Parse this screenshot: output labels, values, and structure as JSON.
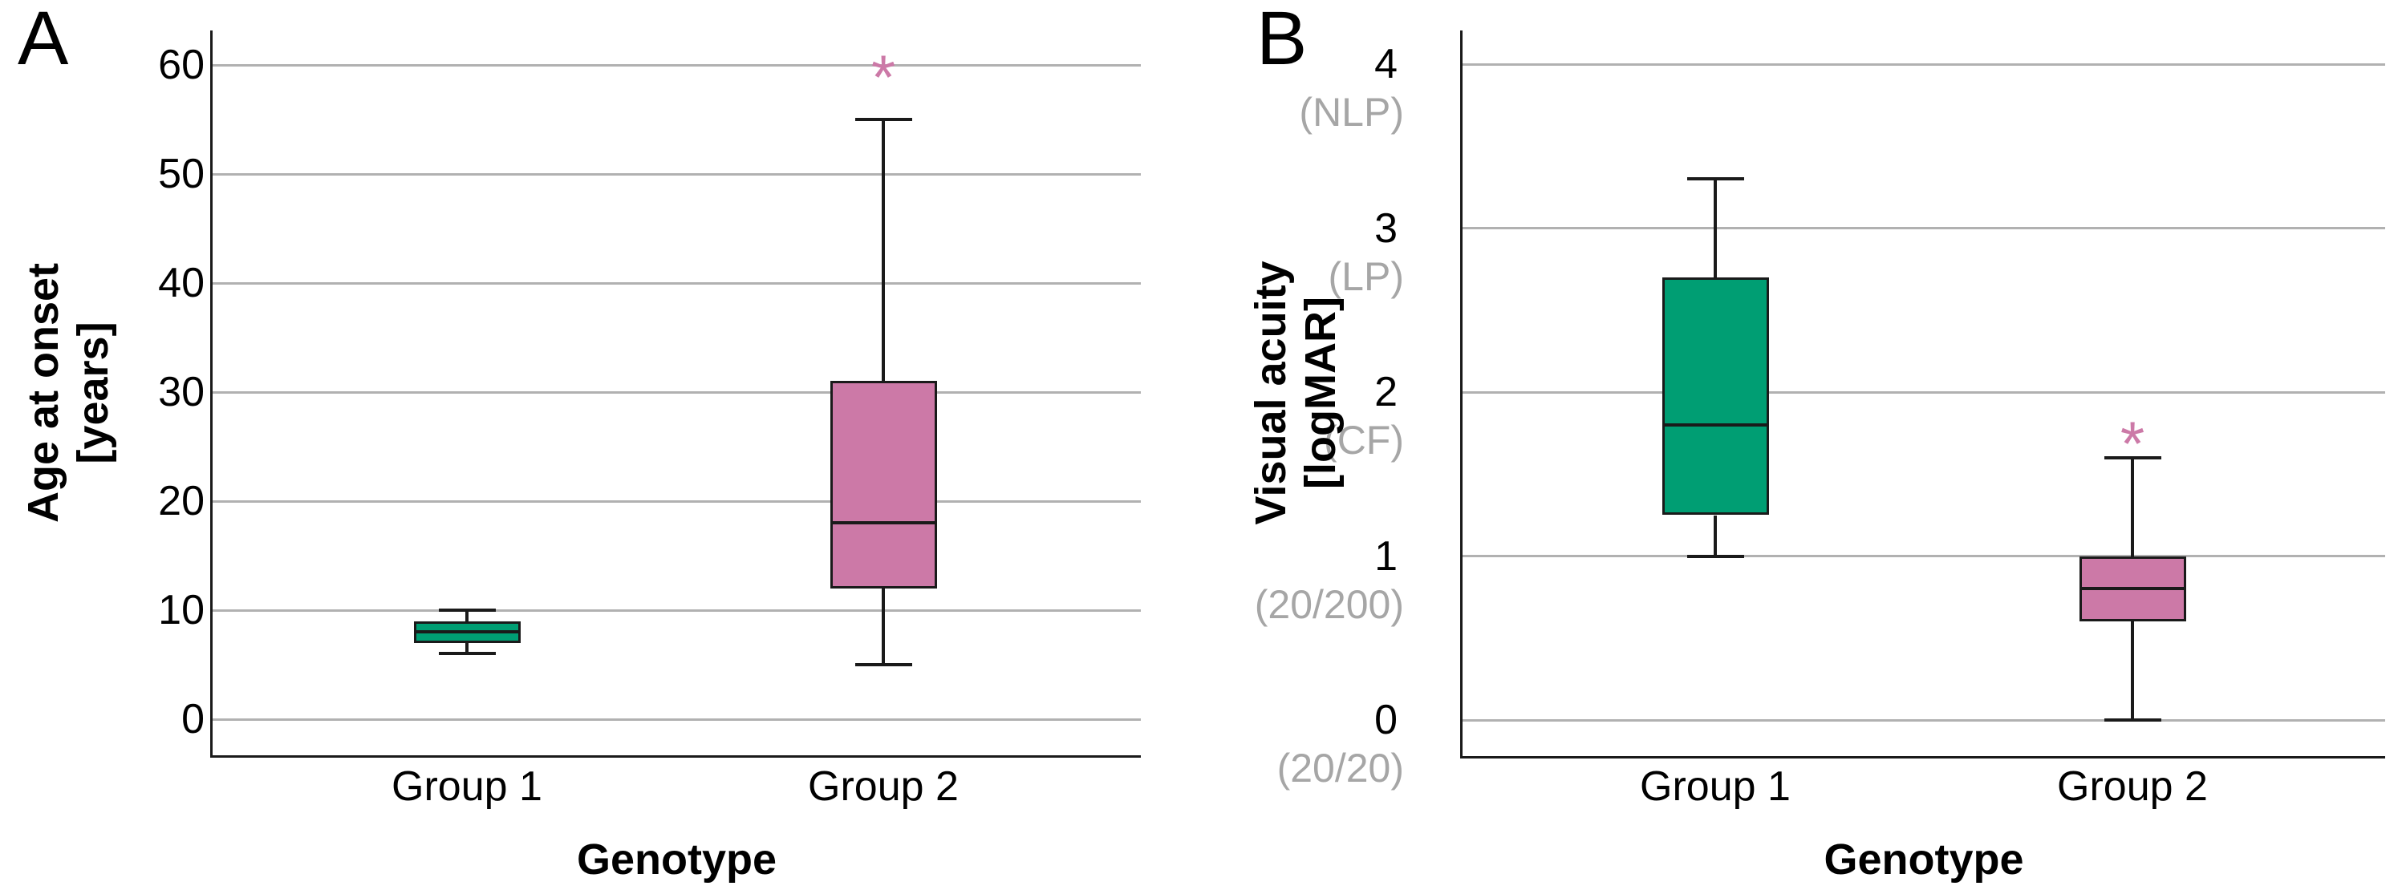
{
  "figure_type": "two-panel box plot figure",
  "colors": {
    "group1_fill": "#009E73",
    "group2_fill": "#CC79A7",
    "significance_marker": "#CC79A7",
    "gridline": "#B1B1B1",
    "secondary_tick_label": "#A6A6A6",
    "axis_line": "#1A1A1A",
    "text": "#000000",
    "background": "#FFFFFF"
  },
  "chart_data": [
    {
      "type": "box",
      "panel_label": "A",
      "title": "",
      "xlabel": "Genotype",
      "ylabel": "Age at onset [years]",
      "ylabel_lines": [
        "Age at onset",
        "[years]"
      ],
      "categories": [
        "Group 1",
        "Group 2"
      ],
      "yticks": [
        0,
        10,
        20,
        30,
        40,
        50,
        60
      ],
      "ylim": [
        0,
        63
      ],
      "grid": true,
      "legend": "none",
      "series": [
        {
          "name": "Group 1",
          "fill": "#009E73",
          "whisker_low": 6,
          "q1": 7,
          "median": 8,
          "q3": 9,
          "whisker_high": 10
        },
        {
          "name": "Group 2",
          "fill": "#CC79A7",
          "whisker_low": 5,
          "q1": 12,
          "median": 18,
          "q3": 31,
          "whisker_high": 55
        }
      ],
      "annotations": [
        {
          "text": "*",
          "category": "Group 2",
          "value": 60,
          "color": "#CC79A7"
        }
      ]
    },
    {
      "type": "box",
      "panel_label": "B",
      "title": "",
      "xlabel": "Genotype",
      "ylabel": "Visual acuity [logMAR]",
      "ylabel_lines": [
        "Visual acuity",
        "[logMAR]"
      ],
      "categories": [
        "Group 1",
        "Group 2"
      ],
      "yticks": [
        0,
        1,
        2,
        3,
        4
      ],
      "ytick_secondary_labels": [
        "(20/20)",
        "(20/200)",
        "(CF)",
        "(LP)",
        "(NLP)"
      ],
      "ylim": [
        0,
        4.2
      ],
      "grid": true,
      "legend": "none",
      "series": [
        {
          "name": "Group 1",
          "fill": "#009E73",
          "whisker_low": 1.0,
          "q1": 1.25,
          "median": 1.8,
          "q3": 2.7,
          "whisker_high": 3.3
        },
        {
          "name": "Group 2",
          "fill": "#CC79A7",
          "whisker_low": 0.0,
          "q1": 0.6,
          "median": 0.8,
          "q3": 1.0,
          "whisker_high": 1.6
        }
      ],
      "annotations": [
        {
          "text": "*",
          "category": "Group 2",
          "value": 1.76,
          "color": "#CC79A7"
        }
      ]
    }
  ]
}
